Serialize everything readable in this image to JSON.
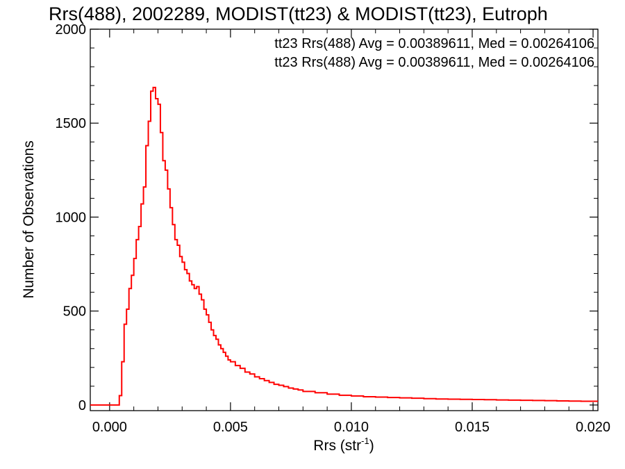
{
  "chart_data": {
    "type": "line",
    "title": "Rrs(488), 2002289, MODIST(tt23) & MODIST(tt23), Eutroph",
    "xlabel": "Rrs (str",
    "xlabel_sup": "-1",
    "xlabel_close": ")",
    "ylabel": "Number of Observations",
    "xlim": [
      -0.0008,
      0.0202
    ],
    "ylim": [
      -30,
      2000
    ],
    "xticks": [
      0.0,
      0.005,
      0.01,
      0.015,
      0.02
    ],
    "xtick_labels": [
      "0.000",
      "0.005",
      "0.010",
      "0.015",
      "0.020"
    ],
    "yticks": [
      0,
      500,
      1000,
      1500,
      2000
    ],
    "ytick_labels": [
      "0",
      "500",
      "1000",
      "1500",
      "2000"
    ],
    "legend_position": "top-right",
    "legend": [
      {
        "text": "tt23 Rrs(488) Avg = 0.00389611, Med = 0.00264106",
        "color": "#000000"
      },
      {
        "text": "tt23 Rrs(488) Avg = 0.00389611, Med = 0.00264106",
        "color": "#ff0000"
      }
    ],
    "series": [
      {
        "color": "#ff0000",
        "x": [
          -0.0008,
          0.0003,
          0.0004,
          0.0005,
          0.0006,
          0.0007,
          0.0008,
          0.0009,
          0.001,
          0.0011,
          0.0012,
          0.0013,
          0.0014,
          0.0015,
          0.0016,
          0.0017,
          0.0018,
          0.0019,
          0.002,
          0.0021,
          0.0022,
          0.0023,
          0.0024,
          0.0025,
          0.0026,
          0.0027,
          0.0028,
          0.0029,
          0.003,
          0.0031,
          0.0032,
          0.0033,
          0.0034,
          0.0035,
          0.0036,
          0.0037,
          0.0038,
          0.0039,
          0.004,
          0.0041,
          0.0042,
          0.0043,
          0.0044,
          0.0045,
          0.0046,
          0.0047,
          0.0048,
          0.0049,
          0.005,
          0.0052,
          0.0054,
          0.0056,
          0.0058,
          0.006,
          0.0062,
          0.0064,
          0.0066,
          0.0068,
          0.007,
          0.0072,
          0.0074,
          0.0076,
          0.0078,
          0.008,
          0.0085,
          0.009,
          0.0095,
          0.01,
          0.0105,
          0.011,
          0.0115,
          0.012,
          0.0125,
          0.013,
          0.0135,
          0.014,
          0.0145,
          0.015,
          0.0155,
          0.016,
          0.0165,
          0.017,
          0.0175,
          0.018,
          0.0185,
          0.019,
          0.0195,
          0.02,
          0.0202
        ],
        "y": [
          0,
          0,
          50,
          230,
          430,
          510,
          620,
          690,
          780,
          880,
          950,
          1070,
          1160,
          1380,
          1510,
          1670,
          1690,
          1630,
          1600,
          1450,
          1300,
          1250,
          1150,
          1050,
          960,
          880,
          850,
          790,
          760,
          720,
          700,
          660,
          640,
          620,
          630,
          590,
          560,
          510,
          480,
          440,
          400,
          370,
          350,
          320,
          300,
          280,
          260,
          240,
          230,
          210,
          195,
          175,
          165,
          150,
          140,
          130,
          120,
          110,
          105,
          98,
          90,
          85,
          80,
          72,
          65,
          58,
          52,
          48,
          44,
          42,
          40,
          38,
          36,
          34,
          32,
          31,
          30,
          29,
          28,
          27,
          26,
          25,
          24,
          23,
          22,
          21,
          20,
          20,
          20
        ]
      }
    ]
  }
}
